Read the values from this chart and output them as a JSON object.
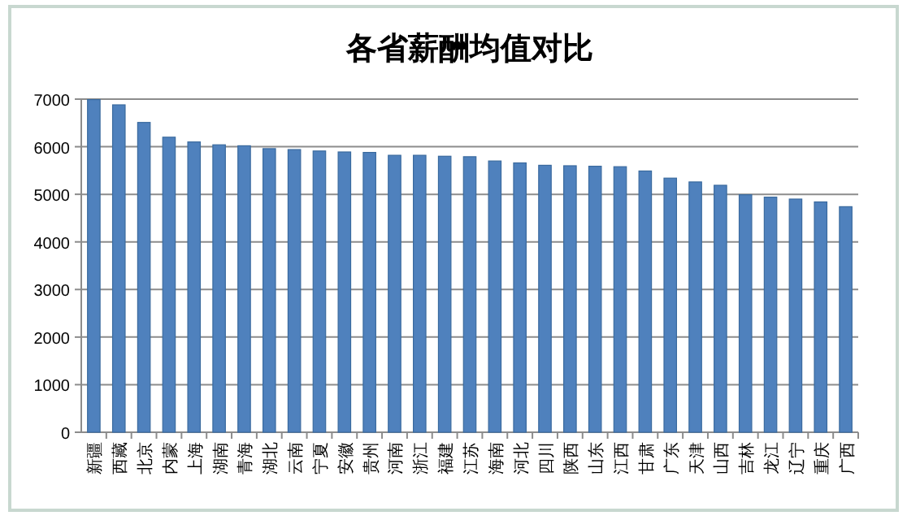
{
  "chart_data": {
    "type": "bar",
    "title": "各省薪酬均值对比",
    "categories": [
      "新疆",
      "西藏",
      "北京",
      "内蒙",
      "上海",
      "湖南",
      "青海",
      "湖北",
      "云南",
      "宁夏",
      "安徽",
      "贵州",
      "河南",
      "浙江",
      "福建",
      "江苏",
      "海南",
      "河北",
      "四川",
      "陕西",
      "山东",
      "江西",
      "甘肃",
      "广东",
      "天津",
      "山西",
      "吉林",
      "龙江",
      "辽宁",
      "重庆",
      "广西"
    ],
    "values": [
      6990,
      6880,
      6510,
      6200,
      6100,
      6040,
      6020,
      5960,
      5940,
      5910,
      5890,
      5880,
      5820,
      5820,
      5800,
      5790,
      5700,
      5660,
      5610,
      5600,
      5590,
      5580,
      5490,
      5340,
      5260,
      5190,
      4990,
      4940,
      4900,
      4840,
      4740
    ],
    "color": "#4f81bd",
    "ylim": [
      0,
      7000
    ],
    "yticks": [
      0,
      1000,
      2000,
      3000,
      4000,
      5000,
      6000,
      7000
    ],
    "grid": "y"
  }
}
